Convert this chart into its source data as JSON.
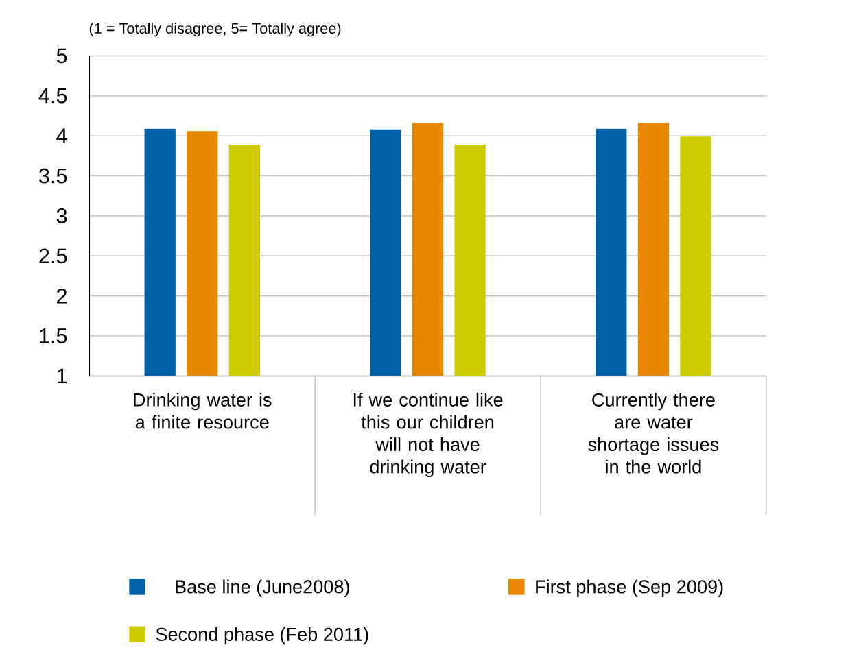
{
  "chart_data": {
    "type": "bar",
    "title": "(1 = Totally disagree, 5= Totally agree)",
    "categories": [
      "Drinking water is a finite resource",
      "If we continue like this our children will not have drinking water",
      "Currently there are water shortage issues in the world"
    ],
    "series": [
      {
        "name": "Base line (June2008)",
        "color": "#0060a8",
        "values": [
          4.09,
          4.08,
          4.09
        ]
      },
      {
        "name": "First phase (Sep 2009)",
        "color": "#e88800",
        "values": [
          4.06,
          4.16,
          4.16
        ]
      },
      {
        "name": "Second phase (Feb 2011)",
        "color": "#cccc00",
        "values": [
          3.89,
          3.89,
          3.99
        ]
      }
    ],
    "ylim": [
      1,
      5
    ],
    "yticks": [
      1,
      1.5,
      2,
      2.5,
      3,
      3.5,
      4,
      4.5,
      5
    ],
    "grid": "y",
    "legend": "bottom"
  }
}
